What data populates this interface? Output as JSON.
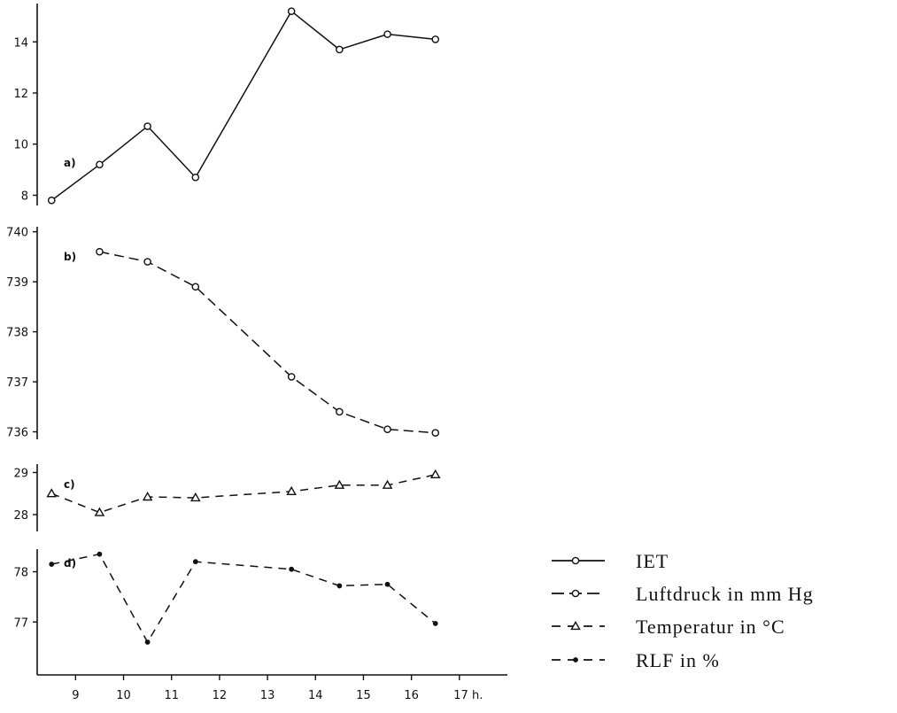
{
  "chart_data": [
    {
      "type": "line",
      "panel_label": "a)",
      "x": [
        8.5,
        9.5,
        10.5,
        11.5,
        13.5,
        14.5,
        15.5,
        16.5
      ],
      "ylim": [
        7.6,
        15.5
      ],
      "yticks": [
        8,
        10,
        12,
        14
      ],
      "series": [
        {
          "name": "IET",
          "marker": "circle",
          "dash": "solid",
          "values": [
            7.8,
            9.2,
            10.7,
            8.7,
            15.2,
            13.7,
            14.3,
            14.1
          ]
        }
      ]
    },
    {
      "type": "line",
      "panel_label": "b)",
      "x": [
        9.5,
        10.5,
        11.5,
        13.5,
        14.5,
        15.5,
        16.5
      ],
      "ylim": [
        735.85,
        740.1
      ],
      "yticks": [
        736,
        737,
        738,
        739,
        740
      ],
      "series": [
        {
          "name": "Luftdruck in mm Hg",
          "marker": "circle",
          "dash": "longdash",
          "values": [
            739.6,
            739.4,
            738.9,
            737.1,
            736.4,
            736.05,
            735.98
          ]
        }
      ]
    },
    {
      "type": "line",
      "panel_label": "c)",
      "x": [
        8.5,
        9.5,
        10.5,
        11.5,
        13.5,
        14.5,
        15.5,
        16.5
      ],
      "ylim": [
        27.6,
        29.2
      ],
      "yticks": [
        28,
        29
      ],
      "series": [
        {
          "name": "Temperatur in °C",
          "marker": "triangle",
          "dash": "dash",
          "values": [
            28.5,
            28.05,
            28.42,
            28.4,
            28.55,
            28.7,
            28.7,
            28.95
          ]
        }
      ]
    },
    {
      "type": "line",
      "panel_label": "d)",
      "x": [
        8.5,
        9.5,
        10.5,
        11.5,
        13.5,
        14.5,
        15.5,
        16.5
      ],
      "ylim": [
        76.3,
        78.45
      ],
      "yticks": [
        77,
        78
      ],
      "series": [
        {
          "name": "RLF in %",
          "marker": "dot",
          "dash": "dash",
          "values": [
            78.15,
            78.35,
            76.6,
            78.2,
            78.05,
            77.72,
            77.75,
            76.97
          ]
        }
      ]
    }
  ],
  "x_axis": {
    "ticks": [
      9,
      10,
      11,
      12,
      13,
      14,
      15,
      16,
      17
    ],
    "tick_labels": [
      "9",
      "10",
      "11",
      "12",
      "13",
      "14",
      "15",
      "16",
      "17 h."
    ],
    "range": [
      8.2,
      18.0
    ]
  },
  "legend": {
    "placement": "bottom-right",
    "items": [
      {
        "label": "IET",
        "marker": "circle",
        "dash": "solid"
      },
      {
        "label": "Luftdruck in mm Hg",
        "marker": "circle",
        "dash": "longdash"
      },
      {
        "label": "Temperatur in °C",
        "marker": "triangle",
        "dash": "dash"
      },
      {
        "label": "RLF in %",
        "marker": "dot",
        "dash": "dash"
      }
    ]
  },
  "colors": {
    "ink": "#111111",
    "background": "#ffffff"
  }
}
